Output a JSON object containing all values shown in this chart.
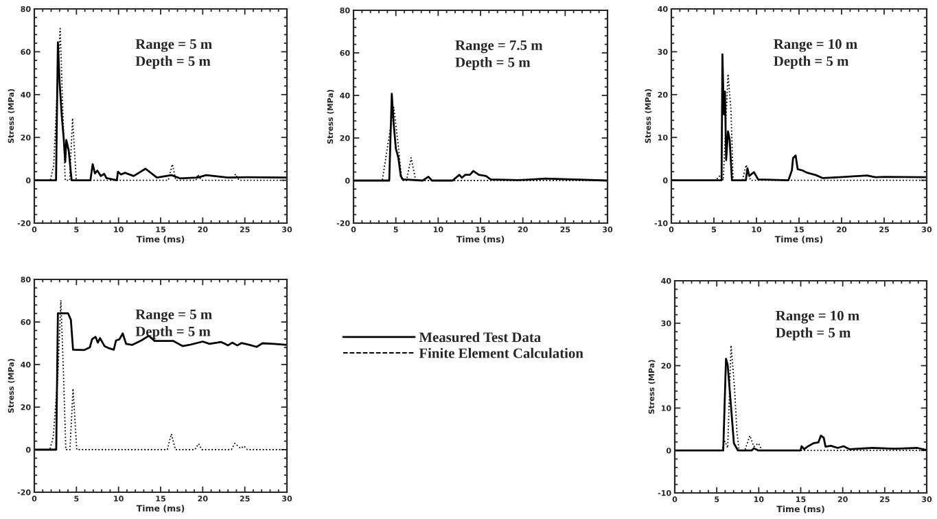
{
  "chart_data": [
    {
      "type": "line",
      "xlabel": "Time (ms)",
      "ylabel": "Stress (MPa)",
      "xlim": [
        0,
        30
      ],
      "xticks": [
        0,
        5,
        10,
        15,
        20,
        25,
        30
      ],
      "ylim": [
        -20,
        80
      ],
      "yticks": [
        -20,
        0,
        20,
        40,
        60,
        80
      ],
      "annotations": [
        "Range = 5 m\nDepth = 5 m"
      ],
      "legend": false,
      "series": [
        {
          "color": "#000000",
          "line_style": "solid",
          "x": [
            0,
            2.58,
            2.8,
            3.0,
            3.26,
            3.5,
            3.67,
            3.8,
            4.08,
            4.43,
            6.66,
            6.93,
            7.2,
            7.48,
            7.9,
            8.3,
            8.57,
            9.8,
            9.93,
            10.3,
            10.74,
            11.8,
            13.2,
            14.55,
            16.3,
            17.3,
            19.4,
            20.4,
            23,
            25.2,
            30
          ],
          "values": [
            0,
            0,
            64.4,
            46,
            30,
            19,
            8.6,
            18.8,
            14,
            0,
            0,
            7.5,
            3.2,
            4.5,
            2,
            3,
            1,
            0,
            4,
            2.7,
            3.5,
            2,
            5.4,
            1.3,
            2.4,
            0.9,
            1.3,
            2.4,
            1.3,
            1.4,
            1.3
          ]
        },
        {
          "color": "#000000",
          "line_style": "dotted",
          "x": [
            0,
            1.9,
            2.3,
            3.07,
            3.4,
            3.67,
            4.2,
            4.54,
            4.98,
            15.9,
            16.4,
            16.8,
            19.2,
            19.4,
            19.85,
            23.5,
            23.9,
            24.3,
            30
          ],
          "values": [
            0,
            0,
            7,
            70.9,
            31,
            0,
            0,
            29,
            0,
            0,
            7.5,
            0,
            0,
            2.7,
            0,
            0,
            2.9,
            0,
            0
          ]
        }
      ]
    },
    {
      "type": "line",
      "xlabel": "Time (ms)",
      "ylabel": "Stress (MPa)",
      "xlim": [
        0,
        30
      ],
      "xticks": [
        0,
        5,
        10,
        15,
        20,
        25,
        30
      ],
      "ylim": [
        -20,
        80
      ],
      "yticks": [
        -20,
        0,
        20,
        40,
        60,
        80
      ],
      "annotations": [
        "Range = 7.5 m\nDepth = 5 m"
      ],
      "legend": false,
      "series": [
        {
          "color": "#000000",
          "line_style": "solid",
          "x": [
            0,
            4.22,
            4.52,
            4.74,
            5.0,
            5.3,
            5.58,
            5.85,
            8.17,
            8.85,
            9.26,
            11.7,
            12.5,
            12.8,
            13.2,
            13.75,
            14.16,
            14.8,
            15.65,
            16.2,
            19.5,
            22.7,
            30
          ],
          "values": [
            0,
            0,
            40.8,
            26.9,
            15,
            10.7,
            2.1,
            0.5,
            0,
            1.8,
            0,
            0,
            2.7,
            1.3,
            2.7,
            2.7,
            4.5,
            2.7,
            2.1,
            0.5,
            0.2,
            0.9,
            0
          ]
        },
        {
          "color": "#000000",
          "line_style": "dotted",
          "x": [
            0,
            3.4,
            4.36,
            4.76,
            5.3,
            5.7,
            6.26,
            6.8,
            7.35,
            30
          ],
          "values": [
            0,
            0,
            24.7,
            34.4,
            16,
            0,
            0,
            10.7,
            0,
            0
          ]
        }
      ]
    },
    {
      "type": "line",
      "xlabel": "Time (ms)",
      "ylabel": "Stress (MPa)",
      "xlim": [
        0,
        30
      ],
      "xticks": [
        0,
        5,
        10,
        15,
        20,
        25,
        30
      ],
      "ylim": [
        -10,
        40
      ],
      "yticks": [
        -10,
        0,
        10,
        20,
        30,
        40
      ],
      "annotations": [
        "Range = 10 m\nDepth = 5 m"
      ],
      "legend": false,
      "series": [
        {
          "color": "#000000",
          "line_style": "solid",
          "x": [
            0,
            5.9,
            6.0,
            6.17,
            6.3,
            6.44,
            6.66,
            6.85,
            7.12,
            8.75,
            8.94,
            9.15,
            9.7,
            10.2,
            13.75,
            14.16,
            14.3,
            14.6,
            14.84,
            15.4,
            15.9,
            17.0,
            17.8,
            19.7,
            23,
            24,
            25.1,
            30
          ],
          "values": [
            0,
            0,
            29.4,
            15.4,
            20.7,
            4.7,
            11.4,
            9.5,
            0,
            0,
            2.8,
            1,
            1.9,
            0.2,
            0,
            2.3,
            5.2,
            5.8,
            2.6,
            2.3,
            1.8,
            1.2,
            0.5,
            0.7,
            1.1,
            0.7,
            0.8,
            0.7
          ]
        },
        {
          "color": "#000000",
          "line_style": "dotted",
          "x": [
            0,
            5.2,
            5.77,
            6.1,
            6.66,
            7.0,
            7.26,
            8.34,
            8.8,
            9.3,
            30
          ],
          "values": [
            0,
            0,
            1.2,
            0,
            24.8,
            16.5,
            0,
            0,
            3.6,
            0,
            0
          ]
        }
      ]
    },
    {
      "type": "line",
      "xlabel": "Time (ms)",
      "ylabel": "Stress (MPa)",
      "xlim": [
        0,
        30
      ],
      "xticks": [
        0,
        5,
        10,
        15,
        20,
        25,
        30
      ],
      "ylim": [
        -20,
        80
      ],
      "yticks": [
        -20,
        0,
        20,
        40,
        60,
        80
      ],
      "annotations": [
        "Range = 5 m\nDepth = 5 m"
      ],
      "legend": "right",
      "series": [
        {
          "name": "Measured Test Data",
          "color": "#000000",
          "line_style": "solid",
          "x": [
            0,
            2.6,
            2.8,
            4.0,
            4.34,
            4.6,
            5.9,
            6.6,
            6.86,
            7.27,
            7.54,
            7.8,
            8.35,
            8.9,
            9.44,
            9.7,
            10.1,
            10.5,
            10.9,
            11.6,
            12.7,
            13.6,
            14.3,
            16.5,
            17.6,
            18.4,
            20,
            20.8,
            22.2,
            23,
            23.5,
            24.1,
            24.6,
            25.4,
            26.4,
            27.1,
            28.4,
            30
          ],
          "values": [
            0,
            0,
            64.1,
            64.1,
            61,
            47,
            46.8,
            48.1,
            51.9,
            53,
            50.3,
            52.4,
            48.6,
            47.6,
            47,
            51.3,
            51.8,
            54.6,
            49.7,
            49.2,
            51.3,
            53.5,
            51.1,
            51.1,
            48.7,
            49.2,
            50.8,
            49.7,
            50.6,
            49,
            50.3,
            49,
            50.1,
            49.4,
            48.3,
            50,
            49.7,
            49.2
          ]
        },
        {
          "name": "Finite Element Calculation",
          "color": "#000000",
          "line_style": "dotted",
          "x": [
            0,
            1.84,
            2.25,
            2.8,
            3.15,
            3.47,
            3.74,
            4.23,
            4.6,
            5.04,
            15.8,
            16.27,
            16.76,
            19.07,
            19.5,
            19.9,
            23.4,
            23.8,
            24.5,
            24.9,
            25.3,
            30
          ],
          "values": [
            0,
            0,
            6,
            35,
            70.2,
            35,
            0,
            0,
            28.7,
            0,
            0,
            7.4,
            0,
            0,
            2.8,
            0,
            0,
            3,
            0.6,
            1.7,
            0,
            0
          ]
        }
      ]
    },
    {
      "type": "line",
      "xlabel": "Time (ms)",
      "ylabel": "Stress (MPa)",
      "xlim": [
        0,
        30
      ],
      "xticks": [
        0,
        5,
        10,
        15,
        20,
        25,
        30
      ],
      "ylim": [
        -10,
        40
      ],
      "yticks": [
        -10,
        0,
        10,
        20,
        30,
        40
      ],
      "annotations": [
        "Range = 10 m\nDepth = 5 m"
      ],
      "legend": false,
      "series": [
        {
          "color": "#000000",
          "line_style": "solid",
          "x": [
            0,
            5.77,
            6.1,
            6.3,
            6.66,
            7.04,
            7.53,
            9.15,
            9.42,
            9.96,
            14.97,
            15.1,
            15.4,
            15.8,
            16.5,
            17.1,
            17.4,
            17.74,
            17.95,
            18.6,
            19.4,
            20.1,
            20.8,
            23.5,
            26.2,
            28.9,
            30
          ],
          "values": [
            0,
            0,
            21.6,
            20.2,
            11.3,
            1.7,
            0,
            0,
            0.5,
            0,
            0,
            1,
            0.3,
            0.9,
            1.7,
            1.9,
            3.5,
            3,
            0.9,
            1.1,
            0.6,
            1,
            0.3,
            0.6,
            0.4,
            0.6,
            0.1
          ]
        },
        {
          "color": "#000000",
          "line_style": "dotted",
          "x": [
            0,
            5.6,
            5.96,
            6.3,
            6.7,
            7.12,
            7.4,
            7.66,
            8.34,
            8.94,
            9.42,
            9.96,
            10.4,
            30
          ],
          "values": [
            0,
            0,
            2.2,
            0.6,
            24.8,
            14.6,
            4.4,
            0,
            0,
            3.5,
            0.9,
            1.7,
            0,
            0
          ]
        }
      ]
    }
  ]
}
